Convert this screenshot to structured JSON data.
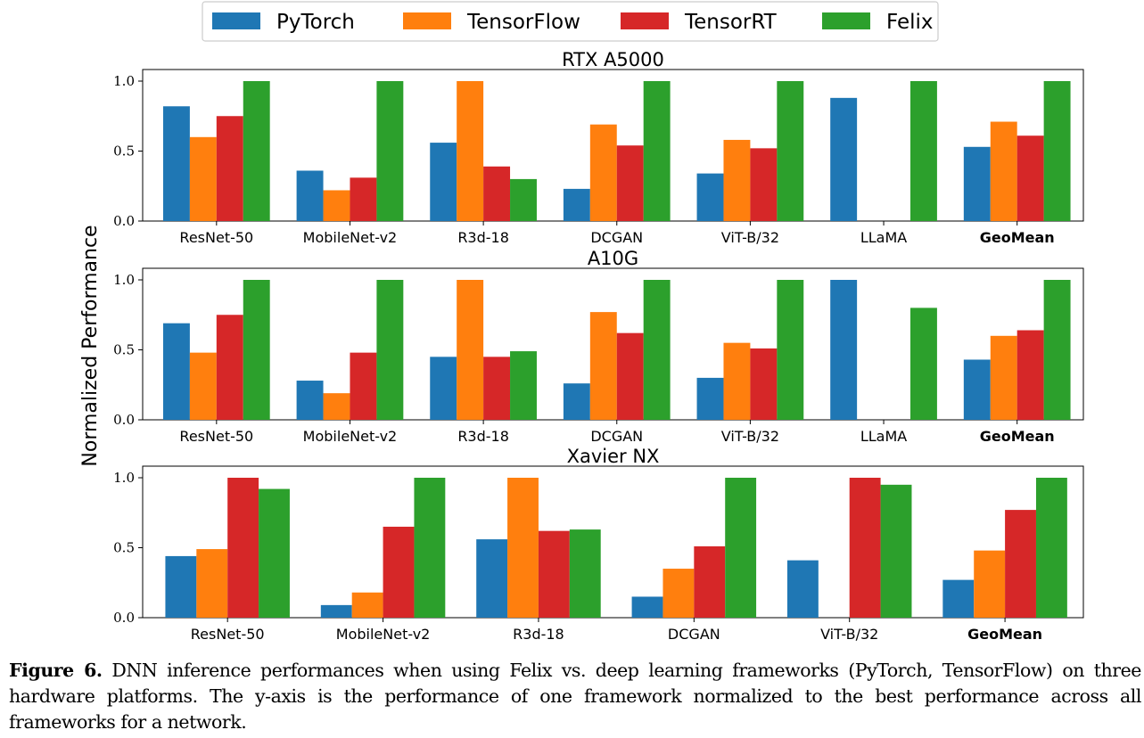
{
  "legend": {
    "entries": [
      "PyTorch",
      "TensorFlow",
      "TensorRT",
      "Felix"
    ]
  },
  "colors": {
    "PyTorch": "#1f77b4",
    "TensorFlow": "#ff7f0e",
    "TensorRT": "#d62728",
    "Felix": "#2ca02c"
  },
  "ylabel": "Normalized Performance",
  "caption": {
    "label": "Figure 6.",
    "text": "DNN inference performances when using Felix vs. deep learning frameworks (PyTorch, TensorFlow) on three hardware platforms. The y-axis is the performance of one framework normalized to the best performance across all frameworks for a network."
  },
  "chart_data": [
    {
      "type": "bar",
      "title": "RTX A5000",
      "categories": [
        "ResNet-50",
        "MobileNet-v2",
        "R3d-18",
        "DCGAN",
        "ViT-B/32",
        "LLaMA",
        "GeoMean"
      ],
      "bold_categories": [
        "GeoMean"
      ],
      "ylim": [
        0,
        1.0
      ],
      "yticks": [
        "0.0",
        "0.5",
        "1.0"
      ],
      "series": [
        {
          "name": "PyTorch",
          "values": [
            0.82,
            0.36,
            0.56,
            0.23,
            0.34,
            0.88,
            0.53
          ]
        },
        {
          "name": "TensorFlow",
          "values": [
            0.6,
            0.22,
            1.0,
            0.69,
            0.58,
            null,
            0.71
          ]
        },
        {
          "name": "TensorRT",
          "values": [
            0.75,
            0.31,
            0.39,
            0.54,
            0.52,
            null,
            0.61
          ]
        },
        {
          "name": "Felix",
          "values": [
            1.0,
            1.0,
            0.3,
            1.0,
            1.0,
            1.0,
            1.0
          ]
        }
      ]
    },
    {
      "type": "bar",
      "title": "A10G",
      "categories": [
        "ResNet-50",
        "MobileNet-v2",
        "R3d-18",
        "DCGAN",
        "ViT-B/32",
        "LLaMA",
        "GeoMean"
      ],
      "bold_categories": [
        "GeoMean"
      ],
      "ylim": [
        0,
        1.0
      ],
      "yticks": [
        "0.0",
        "0.5",
        "1.0"
      ],
      "series": [
        {
          "name": "PyTorch",
          "values": [
            0.69,
            0.28,
            0.45,
            0.26,
            0.3,
            1.0,
            0.43
          ]
        },
        {
          "name": "TensorFlow",
          "values": [
            0.48,
            0.19,
            1.0,
            0.77,
            0.55,
            null,
            0.6
          ]
        },
        {
          "name": "TensorRT",
          "values": [
            0.75,
            0.48,
            0.45,
            0.62,
            0.51,
            null,
            0.64
          ]
        },
        {
          "name": "Felix",
          "values": [
            1.0,
            1.0,
            0.49,
            1.0,
            1.0,
            0.8,
            1.0
          ]
        }
      ]
    },
    {
      "type": "bar",
      "title": "Xavier NX",
      "categories": [
        "ResNet-50",
        "MobileNet-v2",
        "R3d-18",
        "DCGAN",
        "ViT-B/32",
        "GeoMean"
      ],
      "bold_categories": [
        "GeoMean"
      ],
      "ylim": [
        0,
        1.0
      ],
      "yticks": [
        "0.0",
        "0.5",
        "1.0"
      ],
      "series": [
        {
          "name": "PyTorch",
          "values": [
            0.44,
            0.09,
            0.56,
            0.15,
            0.41,
            0.27
          ]
        },
        {
          "name": "TensorFlow",
          "values": [
            0.49,
            0.18,
            1.0,
            0.35,
            null,
            0.48
          ]
        },
        {
          "name": "TensorRT",
          "values": [
            1.0,
            0.65,
            0.62,
            0.51,
            1.0,
            0.77
          ]
        },
        {
          "name": "Felix",
          "values": [
            0.92,
            1.0,
            0.63,
            1.0,
            0.95,
            1.0
          ]
        }
      ]
    }
  ]
}
